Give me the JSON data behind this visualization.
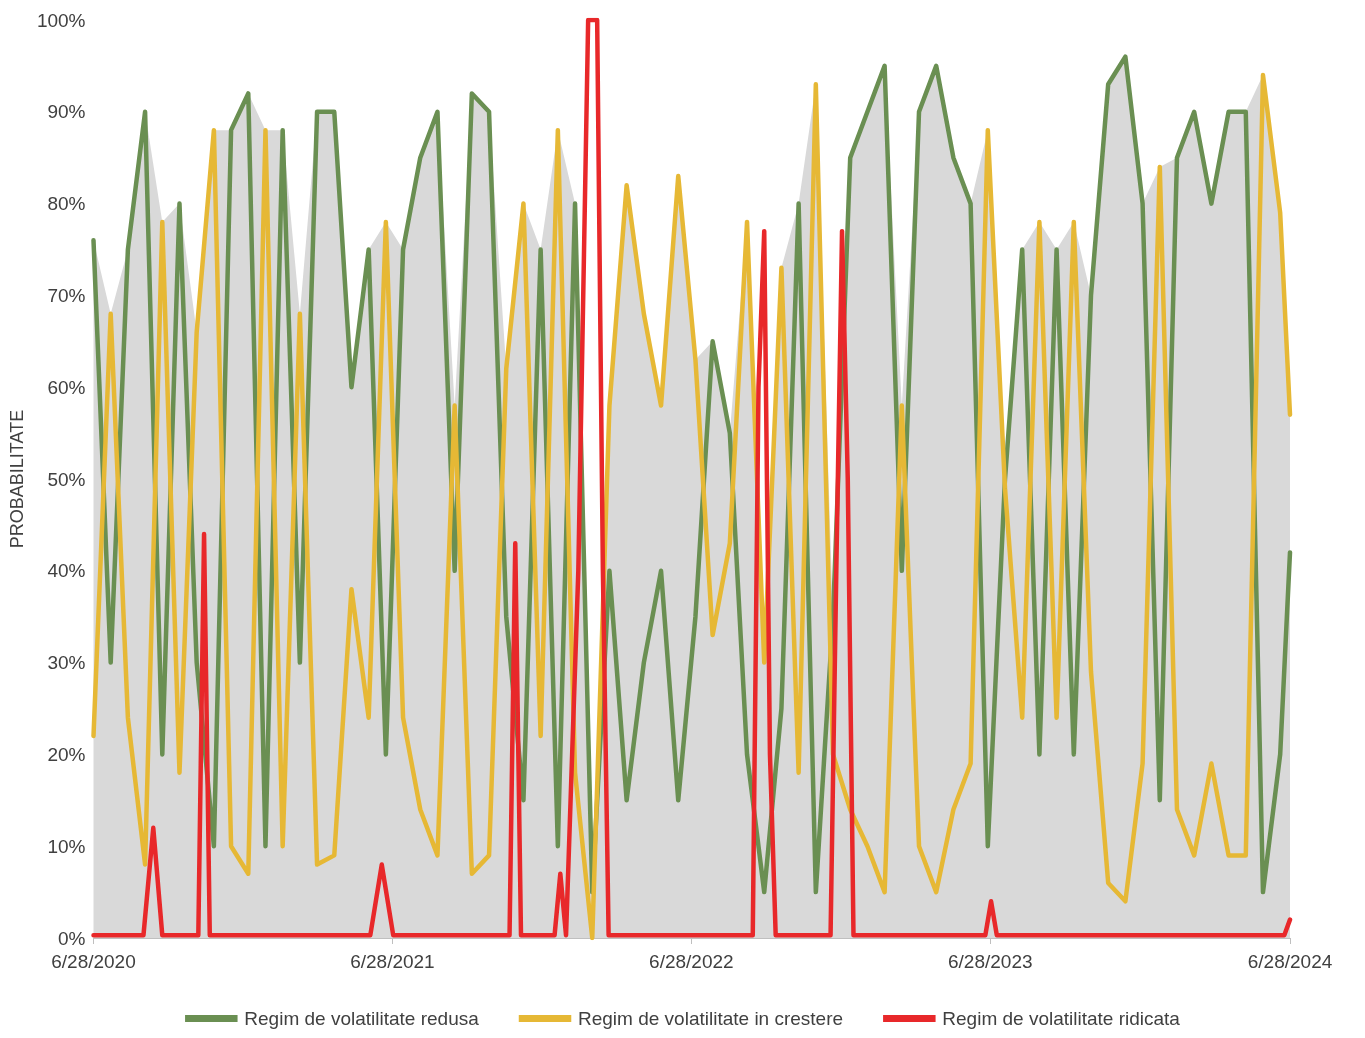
{
  "chart_data": {
    "type": "line",
    "ylabel": "PROBABILITATE",
    "x": [
      "2020-06-28",
      "2020-07-19",
      "2020-08-09",
      "2020-08-30",
      "2020-09-20",
      "2020-10-11",
      "2020-11-01",
      "2020-11-22",
      "2020-12-13",
      "2021-01-03",
      "2021-01-24",
      "2021-02-14",
      "2021-03-07",
      "2021-03-28",
      "2021-04-18",
      "2021-05-09",
      "2021-05-30",
      "2021-06-20",
      "2021-07-11",
      "2021-08-01",
      "2021-08-22",
      "2021-09-12",
      "2021-10-03",
      "2021-10-24",
      "2021-11-14",
      "2021-12-05",
      "2021-12-26",
      "2022-01-16",
      "2022-02-06",
      "2022-02-27",
      "2022-03-20",
      "2022-04-10",
      "2022-05-01",
      "2022-05-22",
      "2022-06-12",
      "2022-07-03",
      "2022-07-24",
      "2022-08-14",
      "2022-09-04",
      "2022-09-25",
      "2022-10-16",
      "2022-11-06",
      "2022-11-27",
      "2022-12-18",
      "2023-01-08",
      "2023-01-29",
      "2023-02-19",
      "2023-03-12",
      "2023-04-02",
      "2023-04-23",
      "2023-05-14",
      "2023-06-04",
      "2023-06-25",
      "2023-07-16",
      "2023-08-06",
      "2023-08-27",
      "2023-09-17",
      "2023-10-08",
      "2023-10-29",
      "2023-11-19",
      "2023-12-10",
      "2023-12-31",
      "2024-01-21",
      "2024-02-11",
      "2024-03-03",
      "2024-03-24",
      "2024-04-14",
      "2024-05-05",
      "2024-05-26",
      "2024-06-16",
      "2024-06-28"
    ],
    "series": [
      {
        "type": "area",
        "color": "#d9d9d9",
        "values": [
          76,
          68,
          75,
          90,
          78,
          80,
          66,
          88,
          88,
          92,
          88,
          88,
          68,
          90,
          90,
          60,
          75,
          78,
          75,
          85,
          90,
          58,
          92,
          90,
          62,
          80,
          75,
          88,
          80,
          5,
          58,
          82,
          68,
          58,
          83,
          63,
          65,
          55,
          78,
          30,
          73,
          80,
          93,
          35,
          85,
          90,
          95,
          58,
          90,
          95,
          85,
          80,
          88,
          50,
          75,
          78,
          75,
          78,
          70,
          93,
          96,
          80,
          84,
          85,
          90,
          80,
          90,
          90,
          94,
          79,
          57
        ]
      },
      {
        "name": "Regim de volatilitate redusa",
        "color": "#6a8f52",
        "values": [
          76,
          30,
          75,
          90,
          20,
          80,
          30,
          10,
          88,
          92,
          10,
          88,
          30,
          90,
          90,
          60,
          75,
          20,
          75,
          85,
          90,
          40,
          92,
          90,
          35,
          15,
          75,
          10,
          80,
          5,
          40,
          15,
          30,
          40,
          15,
          35,
          65,
          55,
          20,
          5,
          25,
          80,
          5,
          35,
          85,
          90,
          95,
          40,
          90,
          95,
          85,
          80,
          10,
          50,
          75,
          20,
          75,
          20,
          70,
          93,
          96,
          80,
          15,
          85,
          90,
          80,
          90,
          90,
          5,
          20,
          42
        ]
      },
      {
        "name": "Regim de volatilitate in crestere",
        "color": "#e6b835",
        "values": [
          22,
          68,
          24,
          8,
          78,
          18,
          66,
          88,
          10,
          7,
          88,
          10,
          68,
          8,
          9,
          38,
          24,
          78,
          24,
          14,
          9,
          58,
          7,
          9,
          62,
          80,
          22,
          88,
          18,
          0,
          58,
          82,
          68,
          58,
          83,
          63,
          33,
          43,
          78,
          30,
          73,
          18,
          93,
          20,
          14,
          10,
          5,
          58,
          10,
          5,
          14,
          19,
          88,
          49,
          24,
          78,
          24,
          78,
          29,
          6,
          4,
          19,
          84,
          14,
          9,
          19,
          9,
          9,
          94,
          79,
          57
        ]
      },
      {
        "name": "Regim de volatilitate ridicata",
        "color": "#e8282a",
        "x": [
          "2020-06-28",
          "2020-08-28",
          "2020-09-09",
          "2020-09-20",
          "2020-11-03",
          "2020-11-10",
          "2020-11-17",
          "2021-06-01",
          "2021-06-15",
          "2021-06-29",
          "2021-11-18",
          "2021-11-25",
          "2021-12-02",
          "2022-01-12",
          "2022-01-19",
          "2022-01-26",
          "2022-02-10",
          "2022-02-22",
          "2022-03-05",
          "2022-03-12",
          "2022-03-19",
          "2022-09-11",
          "2022-09-18",
          "2022-09-25",
          "2022-10-02",
          "2022-10-09",
          "2022-12-15",
          "2022-12-22",
          "2022-12-29",
          "2023-01-05",
          "2023-01-12",
          "2023-06-22",
          "2023-06-29",
          "2023-07-06",
          "2024-06-21",
          "2024-06-28"
        ],
        "values": [
          0.3,
          0.3,
          12,
          0.3,
          0.3,
          44,
          0.3,
          0.3,
          8,
          0.3,
          0.3,
          43,
          0.3,
          0.3,
          7,
          0.3,
          40,
          100,
          100,
          40,
          0.3,
          0.3,
          60,
          77,
          20,
          0.3,
          0.3,
          40,
          77,
          50,
          0.3,
          0.3,
          4,
          0.3,
          0.3,
          2
        ]
      }
    ],
    "xlim": [
      "2020-06-28",
      "2024-06-28"
    ],
    "xticks": [
      {
        "value": "2020-06-28",
        "label": "6/28/2020"
      },
      {
        "value": "2021-06-28",
        "label": "6/28/2021"
      },
      {
        "value": "2022-06-28",
        "label": "6/28/2022"
      },
      {
        "value": "2023-06-28",
        "label": "6/28/2023"
      },
      {
        "value": "2024-06-28",
        "label": "6/28/2024"
      }
    ],
    "ylim": [
      0,
      100
    ],
    "yticks": [
      {
        "value": 0,
        "label": "0%"
      },
      {
        "value": 10,
        "label": "10%"
      },
      {
        "value": 20,
        "label": "20%"
      },
      {
        "value": 30,
        "label": "30%"
      },
      {
        "value": 40,
        "label": "40%"
      },
      {
        "value": 50,
        "label": "50%"
      },
      {
        "value": 60,
        "label": "60%"
      },
      {
        "value": 70,
        "label": "70%"
      },
      {
        "value": 80,
        "label": "80%"
      },
      {
        "value": 90,
        "label": "90%"
      },
      {
        "value": 100,
        "label": "100%"
      }
    ],
    "grid": false,
    "legend": "bottom",
    "marker": "none",
    "line_style": "solid"
  }
}
